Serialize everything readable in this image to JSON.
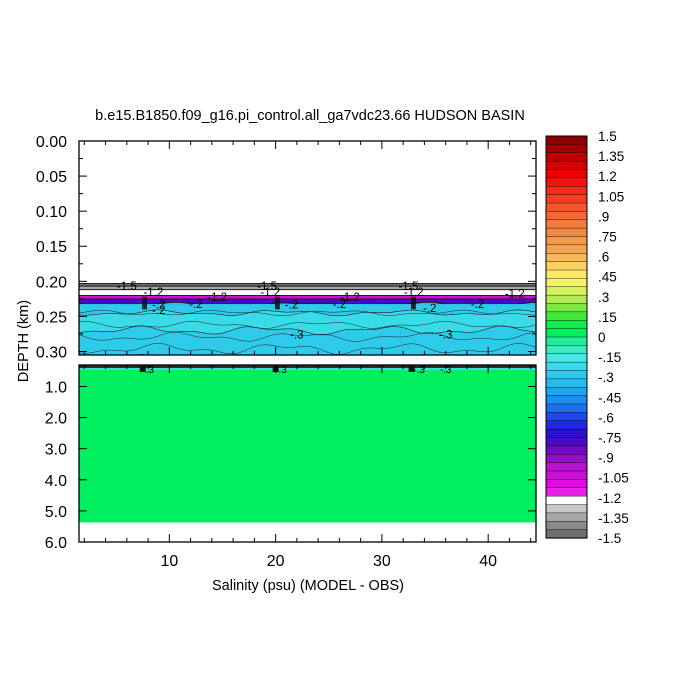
{
  "chart_data": {
    "type": "heatmap",
    "title": "b.e15.B1850.f09_g16.pi_control.all_ga7vdc23.66 HUDSON BASIN",
    "xlabel": "Salinity (psu) (MODEL - OBS)",
    "ylabel": "DEPTH (km)",
    "x_range": [
      1.5,
      44.5
    ],
    "x_ticks": [
      "10",
      "20",
      "30",
      "40"
    ],
    "upper_panel": {
      "ylim": [
        0.0,
        0.305
      ],
      "y_ticks": [
        "0.00",
        "0.05",
        "0.10",
        "0.15",
        "0.20",
        "0.25",
        "0.30"
      ],
      "data_top_depth": 0.203,
      "layers": [
        {
          "depth_from": 0.203,
          "depth_to": 0.207,
          "value": -1.45
        },
        {
          "depth_from": 0.207,
          "depth_to": 0.212,
          "value": -1.35
        },
        {
          "depth_from": 0.212,
          "depth_to": 0.22,
          "value": -1.2
        },
        {
          "depth_from": 0.22,
          "depth_to": 0.225,
          "value": -1.0
        },
        {
          "depth_from": 0.225,
          "depth_to": 0.232,
          "value": -0.8
        },
        {
          "depth_from": 0.232,
          "depth_to": 0.245,
          "value": -0.25
        },
        {
          "depth_from": 0.245,
          "depth_to": 0.27,
          "value": -0.2
        },
        {
          "depth_from": 0.27,
          "depth_to": 0.305,
          "value": -0.3
        }
      ],
      "contour_labels": [
        {
          "x": 6.0,
          "depth": 0.207,
          "text": "-1.5"
        },
        {
          "x": 19.2,
          "depth": 0.207,
          "text": "-1.5"
        },
        {
          "x": 32.5,
          "depth": 0.207,
          "text": "-1.5"
        },
        {
          "x": 8.5,
          "depth": 0.215,
          "text": "-1.2"
        },
        {
          "x": 19.5,
          "depth": 0.215,
          "text": "-1.2"
        },
        {
          "x": 33.0,
          "depth": 0.215,
          "text": "-1.2"
        },
        {
          "x": 42.5,
          "depth": 0.217,
          "text": "-1.2"
        },
        {
          "x": 14.5,
          "depth": 0.222,
          "text": "-1.2"
        },
        {
          "x": 27.0,
          "depth": 0.222,
          "text": "-1.2"
        },
        {
          "x": 9.0,
          "depth": 0.233,
          "text": "-.2"
        },
        {
          "x": 21.5,
          "depth": 0.233,
          "text": "-.2"
        },
        {
          "x": 34.5,
          "depth": 0.238,
          "text": "-.2"
        },
        {
          "x": 9.0,
          "depth": 0.241,
          "text": "-.2"
        },
        {
          "x": 12.5,
          "depth": 0.232,
          "text": "-.2"
        },
        {
          "x": 26.0,
          "depth": 0.232,
          "text": "-.2"
        },
        {
          "x": 39.0,
          "depth": 0.232,
          "text": "-.2"
        },
        {
          "x": 22.0,
          "depth": 0.276,
          "text": "-.3"
        },
        {
          "x": 36.0,
          "depth": 0.276,
          "text": "-.3"
        }
      ]
    },
    "lower_panel": {
      "ylim": [
        0.31,
        6.0
      ],
      "y_ticks": [
        "1.0",
        "2.0",
        "3.0",
        "4.0",
        "5.0",
        "6.0"
      ],
      "data_bottom_depth": 5.37,
      "fill_value": 0.05,
      "contour_labels": [
        {
          "x": 8.0,
          "depth": 0.38,
          "text": "-.3"
        },
        {
          "x": 20.5,
          "depth": 0.38,
          "text": "-.3"
        },
        {
          "x": 33.5,
          "depth": 0.38,
          "text": "-.3"
        },
        {
          "x": 36.0,
          "depth": 0.38,
          "text": "-.3"
        }
      ]
    },
    "colorbar": {
      "labels": [
        "1.5",
        "1.35",
        "1.2",
        "1.05",
        ".9",
        ".75",
        ".6",
        ".45",
        ".3",
        ".15",
        "0",
        "-.15",
        "-.3",
        "-.45",
        "-.6",
        "-.75",
        "-.9",
        "-1.05",
        "-1.2",
        "-1.35",
        "-1.5"
      ],
      "colors": [
        "#8b0000",
        "#a50000",
        "#c00000",
        "#d80000",
        "#ea0000",
        "#f41111",
        "#f52a1a",
        "#f63d24",
        "#f3562d",
        "#f16a35",
        "#f07d3c",
        "#f08a42",
        "#f3974a",
        "#f6a551",
        "#f8b85a",
        "#fcd063",
        "#fde86c",
        "#f4f46c",
        "#d6f060",
        "#b0ec52",
        "#7ee843",
        "#44e83a",
        "#12ec4c",
        "#00ef5e",
        "#22ec9a",
        "#3cebc2",
        "#46e6e6",
        "#3adbe8",
        "#2ecaea",
        "#28b9ec",
        "#22a4ee",
        "#1e8df0",
        "#1c71f0",
        "#2048f0",
        "#2428e4",
        "#2c10d2",
        "#4a0ac8",
        "#700ac0",
        "#9410c4",
        "#b414cc",
        "#cc10d8",
        "#e20ae2",
        "#ec20ec",
        "#ffffff",
        "#c8c8c8",
        "#a8a8a8",
        "#8a8a8a",
        "#6e6e6e"
      ]
    }
  }
}
